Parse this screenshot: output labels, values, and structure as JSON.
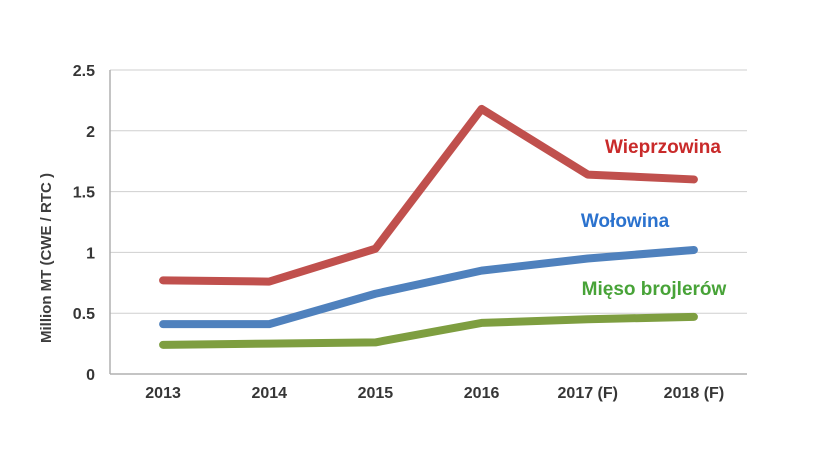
{
  "chart_data": {
    "type": "line",
    "title": "",
    "xlabel": "",
    "ylabel": "Million MT (CWE / RTC )",
    "categories": [
      "2013",
      "2014",
      "2015",
      "2016",
      "2017 (F)",
      "2018 (F)"
    ],
    "series": [
      {
        "name": "Wieprzowina",
        "line_color": "#C0504D",
        "label_color": "#C92A2A",
        "values": [
          0.77,
          0.76,
          1.03,
          2.18,
          1.64,
          1.6
        ]
      },
      {
        "name": "Wołowina",
        "line_color": "#4F81BD",
        "label_color": "#2B72CE",
        "values": [
          0.41,
          0.41,
          0.66,
          0.85,
          0.95,
          1.02
        ]
      },
      {
        "name": "Mięso brojlerów",
        "line_color": "#7E9E40",
        "label_color": "#48A338",
        "values": [
          0.24,
          0.25,
          0.26,
          0.42,
          0.45,
          0.47
        ]
      }
    ],
    "ylim": [
      0,
      2.5
    ],
    "yticks": [
      0,
      0.5,
      1,
      1.5,
      2,
      2.5
    ],
    "grid": true,
    "legend_position": "direct-labels-right"
  }
}
